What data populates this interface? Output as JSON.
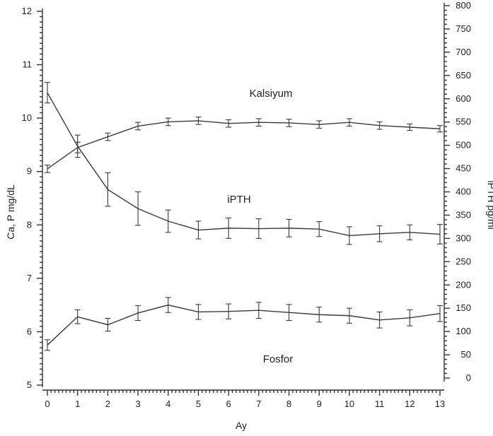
{
  "chart_data": {
    "type": "line",
    "xlabel": "Ay",
    "ylabel_left": "Ca, P mg/dL",
    "ylabel_right": "iPTH pg/ml",
    "x": [
      0,
      1,
      2,
      3,
      4,
      5,
      6,
      7,
      8,
      9,
      10,
      11,
      12,
      13
    ],
    "xlim": [
      0,
      13
    ],
    "ylim_left": [
      5,
      12
    ],
    "ylim_right": [
      0,
      800
    ],
    "yticks_left": [
      5,
      6,
      7,
      8,
      9,
      10,
      11,
      12
    ],
    "yticks_right": [
      0,
      50,
      100,
      150,
      200,
      250,
      300,
      350,
      400,
      450,
      500,
      550,
      600,
      650,
      700,
      750,
      800
    ],
    "grid": false,
    "legend": "none",
    "series": [
      {
        "name": "Kalsiyum",
        "axis": "left",
        "values": [
          9.05,
          9.45,
          9.65,
          9.85,
          9.93,
          9.95,
          9.9,
          9.92,
          9.91,
          9.88,
          9.92,
          9.86,
          9.83,
          9.8
        ],
        "err": [
          0.07,
          0.1,
          0.07,
          0.07,
          0.07,
          0.07,
          0.07,
          0.07,
          0.07,
          0.07,
          0.07,
          0.07,
          0.06,
          0.06
        ]
      },
      {
        "name": "iPTH",
        "axis": "right",
        "values": [
          613,
          498,
          405,
          364,
          337,
          318,
          322,
          321,
          322,
          320,
          306,
          310,
          313,
          309
        ],
        "err": [
          22,
          24,
          36,
          36,
          24,
          19,
          22,
          21,
          19,
          16,
          19,
          17,
          16,
          21
        ]
      },
      {
        "name": "Fosfor",
        "axis": "left",
        "values": [
          5.75,
          6.28,
          6.13,
          6.35,
          6.5,
          6.37,
          6.38,
          6.4,
          6.36,
          6.32,
          6.3,
          6.22,
          6.26,
          6.34
        ],
        "err": [
          0.1,
          0.13,
          0.12,
          0.14,
          0.14,
          0.14,
          0.14,
          0.15,
          0.15,
          0.14,
          0.14,
          0.15,
          0.15,
          0.15
        ]
      }
    ]
  }
}
